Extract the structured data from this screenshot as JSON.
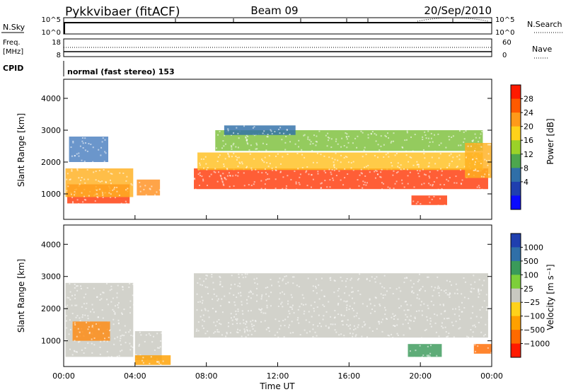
{
  "header": {
    "title": "Pykkvibaer (fitACF)",
    "beam": "Beam 09",
    "date": "20/Sep/2010"
  },
  "top_panels": {
    "nsky_label": "N.Sky",
    "nsky_ticks": [
      "10^5",
      "10^0"
    ],
    "nsearch_label": "N.Search",
    "nsearch_ticks": [
      "10^5",
      "10^0"
    ],
    "freq_label": "Freq.",
    "freq_unit": "[MHz]",
    "freq_ticks": [
      "18",
      "8"
    ],
    "nave_label": "Nave",
    "nave_ticks": [
      "60",
      "0"
    ],
    "cpid_label": "CPID",
    "cpid_text": "normal (fast stereo) 153"
  },
  "power_colorbar": {
    "label": "Power [dB]",
    "ticks": [
      "28",
      "24",
      "20",
      "16",
      "12",
      "8",
      "4"
    ],
    "colors": [
      "#ff1a00",
      "#ff5a00",
      "#ff9a1a",
      "#ffd21a",
      "#9bd228",
      "#4da64d",
      "#2f6fa8",
      "#1f3faf",
      "#0a0aff"
    ]
  },
  "velocity_colorbar": {
    "label": "Velocity [m s⁻¹]",
    "ticks": [
      "1000",
      "500",
      "100",
      "25",
      "−25",
      "−100",
      "−500",
      "−1000"
    ],
    "colors": [
      "#1f3faf",
      "#2f6fa8",
      "#3a9a5a",
      "#7dcf3a",
      "#c8c8c0",
      "#ffd21a",
      "#ffa000",
      "#ff6a00",
      "#ff1a00"
    ]
  },
  "chart_data": {
    "type": "heatmap",
    "ylabel": "Slant Range [km]",
    "xlabel": "Time UT",
    "x_ticks": [
      "00:00",
      "04:00",
      "08:00",
      "12:00",
      "16:00",
      "20:00",
      "00:00"
    ],
    "y_ticks": [
      "4000",
      "3000",
      "2000",
      "1000"
    ],
    "xlim_hours": [
      0,
      24
    ],
    "ylim_km": [
      200,
      4600
    ],
    "panels": [
      {
        "name": "power",
        "regions": [
          {
            "t_start": 0.2,
            "t_end": 3.7,
            "r_low": 700,
            "r_high": 1300,
            "color": "#ff3a0a"
          },
          {
            "t_start": 0.1,
            "t_end": 3.9,
            "r_low": 900,
            "r_high": 1800,
            "color": "#ffb020"
          },
          {
            "t_start": 0.3,
            "t_end": 2.5,
            "r_low": 2000,
            "r_high": 2800,
            "color": "#4a7fbf"
          },
          {
            "t_start": 4.1,
            "t_end": 5.4,
            "r_low": 950,
            "r_high": 1450,
            "color": "#ff9020"
          },
          {
            "t_start": 7.3,
            "t_end": 23.8,
            "r_low": 1150,
            "r_high": 1800,
            "color": "#ff3a0a"
          },
          {
            "t_start": 7.5,
            "t_end": 23.5,
            "r_low": 1750,
            "r_high": 2300,
            "color": "#ffc020"
          },
          {
            "t_start": 8.5,
            "t_end": 23.5,
            "r_low": 2350,
            "r_high": 3000,
            "color": "#7cbf3a"
          },
          {
            "t_start": 9.0,
            "t_end": 13.0,
            "r_low": 2850,
            "r_high": 3150,
            "color": "#2f6fa8"
          },
          {
            "t_start": 19.5,
            "t_end": 21.5,
            "r_low": 650,
            "r_high": 950,
            "color": "#ff3a0a"
          },
          {
            "t_start": 22.5,
            "t_end": 24.0,
            "r_low": 1500,
            "r_high": 2600,
            "color": "#ffb020"
          }
        ]
      },
      {
        "name": "velocity",
        "regions": [
          {
            "t_start": 0.1,
            "t_end": 3.9,
            "r_low": 500,
            "r_high": 2800,
            "color": "#c8c8c0"
          },
          {
            "t_start": 0.5,
            "t_end": 2.6,
            "r_low": 1000,
            "r_high": 1600,
            "color": "#ff8a10"
          },
          {
            "t_start": 4.0,
            "t_end": 5.5,
            "r_low": 400,
            "r_high": 1300,
            "color": "#c8c8c0"
          },
          {
            "t_start": 7.3,
            "t_end": 23.8,
            "r_low": 1100,
            "r_high": 3100,
            "color": "#c8c8c0"
          },
          {
            "t_start": 19.3,
            "t_end": 21.2,
            "r_low": 500,
            "r_high": 900,
            "color": "#3a9a5a"
          },
          {
            "t_start": 23.0,
            "t_end": 24.0,
            "r_low": 600,
            "r_high": 900,
            "color": "#ff6a00"
          },
          {
            "t_start": 4.0,
            "t_end": 6.0,
            "r_low": 250,
            "r_high": 550,
            "color": "#ffa000"
          }
        ]
      }
    ]
  }
}
